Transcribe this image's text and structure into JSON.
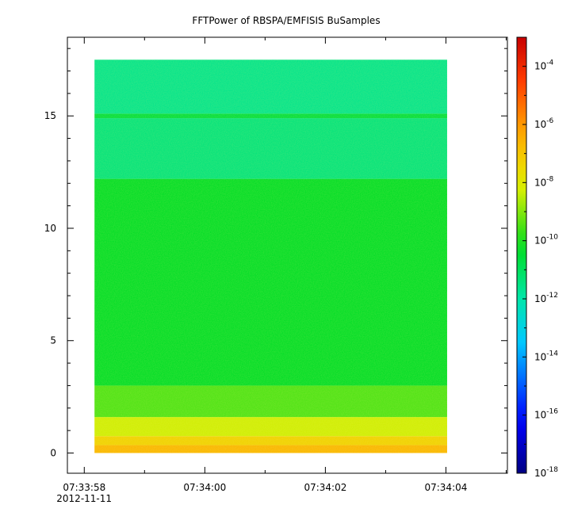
{
  "chart_data": {
    "type": "heatmap",
    "title": "FFTPower of RBSPA/EMFISIS  BuSamples",
    "xlabel": "",
    "ylabel": "",
    "x_tick_labels": [
      "07:33:58",
      "07:34:00",
      "07:34:02",
      "07:34:04"
    ],
    "x_date_label": "2012-11-11",
    "y_ticks": [
      0,
      5,
      10,
      15
    ],
    "y_tick_labels": [
      "0",
      "5",
      "10",
      "15"
    ],
    "ylim": [
      -0.9,
      18.5
    ],
    "xlim_seconds": [
      0,
      7.3
    ],
    "data_x_range_seconds": [
      0.45,
      6.3
    ],
    "data_y_range": [
      0,
      17.5
    ],
    "colorbar": {
      "scale": "log",
      "range": [
        1e-18,
        0.001
      ],
      "tick_labels": [
        {
          "base": "10",
          "exp": "-4",
          "value": 0.0001
        },
        {
          "base": "10",
          "exp": "-6",
          "value": 1e-06
        },
        {
          "base": "10",
          "exp": "-8",
          "value": 1e-08
        },
        {
          "base": "10",
          "exp": "-10",
          "value": 1e-10
        },
        {
          "base": "10",
          "exp": "-12",
          "value": 1e-12
        },
        {
          "base": "10",
          "exp": "-14",
          "value": 1e-14
        },
        {
          "base": "10",
          "exp": "-16",
          "value": 1e-16
        },
        {
          "base": "10",
          "exp": "-18",
          "value": 1e-18
        }
      ],
      "colormap": "rainbow"
    },
    "bands": [
      {
        "y_from": 0,
        "y_to": 0.35,
        "log_power": -6.6
      },
      {
        "y_from": 0.35,
        "y_to": 0.75,
        "log_power": -7.3
      },
      {
        "y_from": 0.75,
        "y_to": 1.6,
        "log_power": -8.3
      },
      {
        "y_from": 1.6,
        "y_to": 3.0,
        "log_power": -9.5
      },
      {
        "y_from": 3.0,
        "y_to": 12.2,
        "log_power": -10.3
      },
      {
        "y_from": 12.2,
        "y_to": 14.9,
        "log_power": -11.4
      },
      {
        "y_from": 14.9,
        "y_to": 15.1,
        "log_power": -10.6
      },
      {
        "y_from": 15.1,
        "y_to": 17.5,
        "log_power": -11.6
      }
    ]
  }
}
